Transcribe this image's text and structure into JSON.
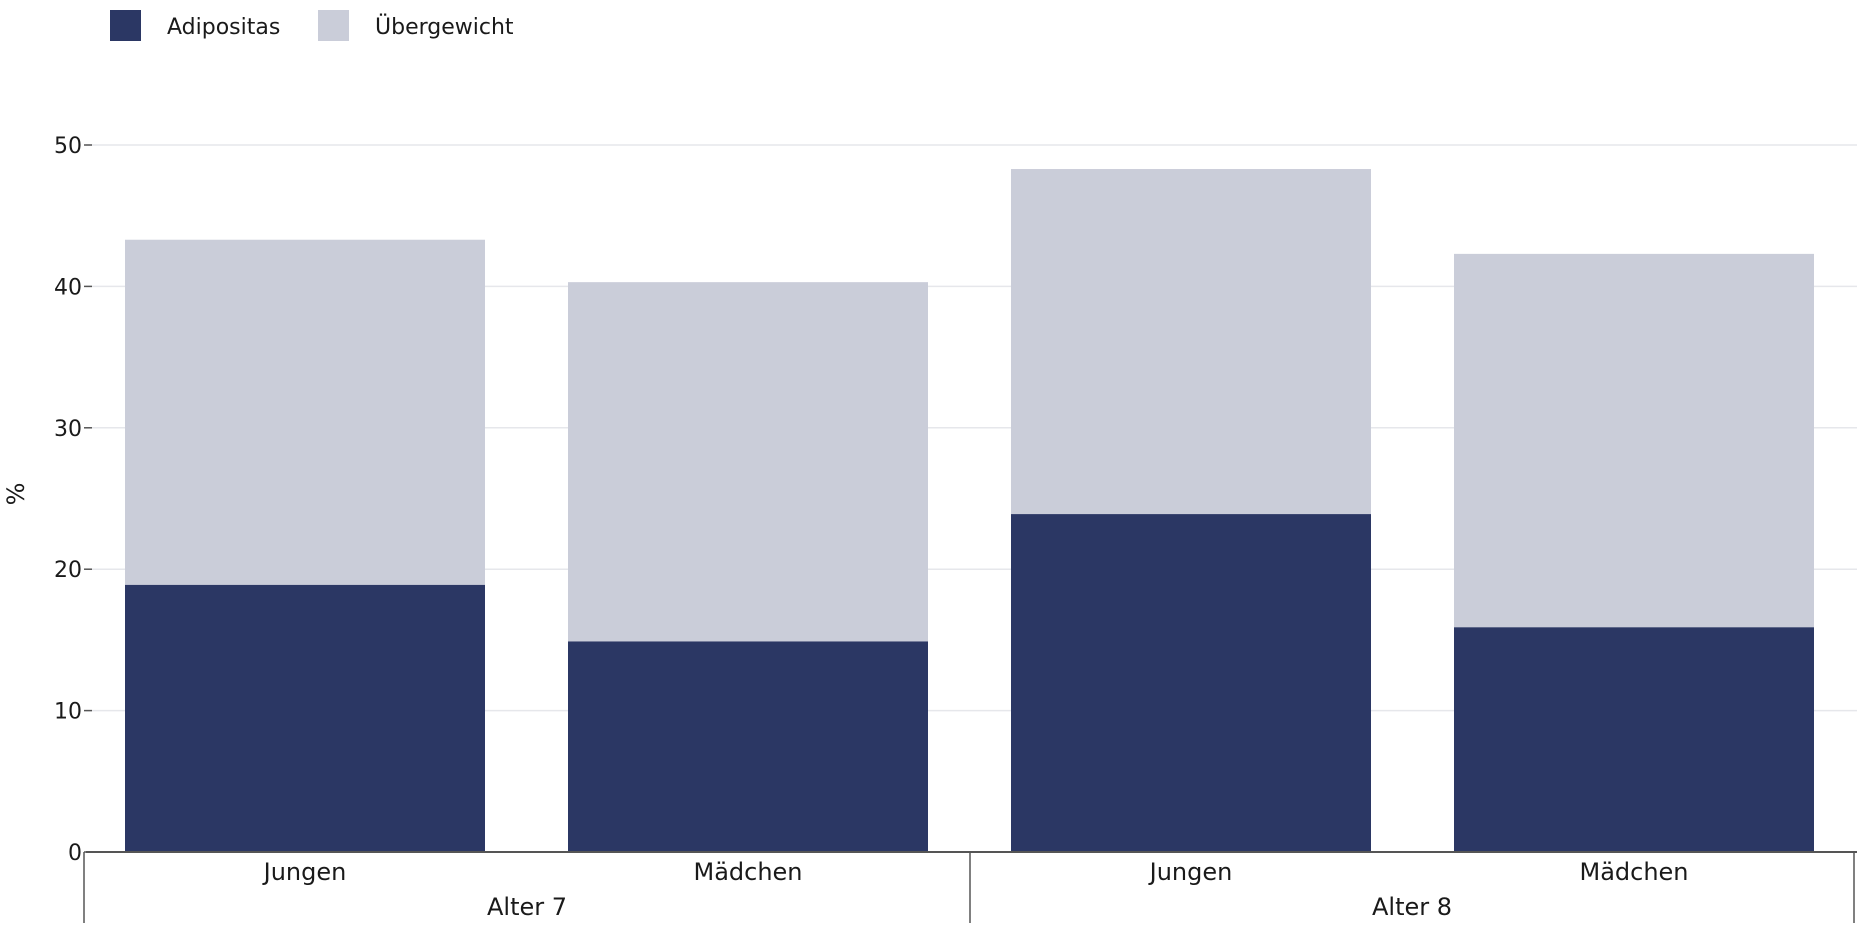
{
  "chart_data": {
    "type": "bar",
    "stacked": true,
    "title": "",
    "xlabel": "",
    "ylabel": "%",
    "ylim": [
      0,
      50
    ],
    "yticks": [
      0,
      10,
      20,
      30,
      40,
      50
    ],
    "grid": true,
    "legend_position": "top-left",
    "groups": [
      {
        "label": "Alter 7",
        "categories": [
          "Jungen",
          "Mädchen"
        ]
      },
      {
        "label": "Alter 8",
        "categories": [
          "Jungen",
          "Mädchen"
        ]
      }
    ],
    "categories": [
      "Jungen",
      "Mädchen",
      "Jungen",
      "Mädchen"
    ],
    "series": [
      {
        "name": "Adipositas",
        "color": "#2b3764",
        "values": [
          18.9,
          14.9,
          23.9,
          15.9
        ]
      },
      {
        "name": "Übergewicht",
        "color": "#cacdd9",
        "values": [
          24.4,
          25.4,
          24.4,
          26.4
        ]
      }
    ]
  }
}
